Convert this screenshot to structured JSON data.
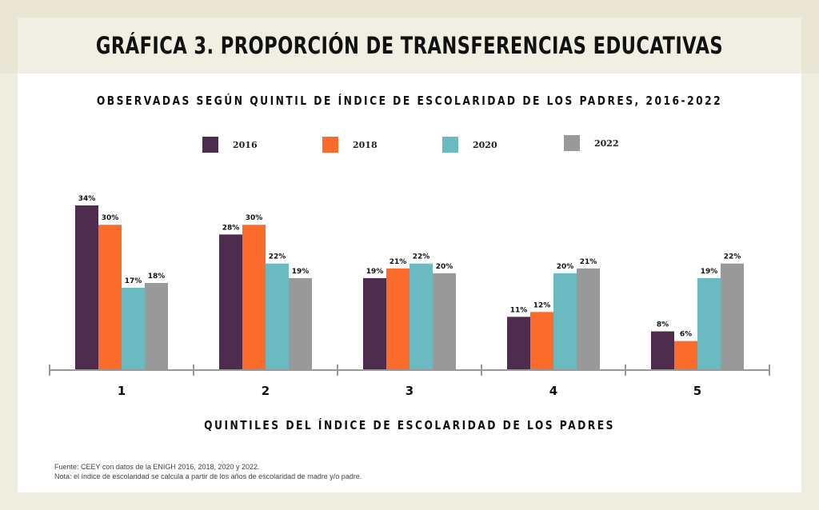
{
  "chart_data": {
    "type": "bar",
    "title": "GRÁFICA 3. PROPORCIÓN DE TRANSFERENCIAS EDUCATIVAS",
    "subtitle": "OBSERVADAS SEGÚN QUINTIL DE ÍNDICE DE ESCOLARIDAD DE LOS PADRES, 2016-2022",
    "xlabel": "QUINTILES DEL ÍNDICE DE ESCOLARIDAD DE LOS PADRES",
    "ylabel": "",
    "ylim": [
      0,
      34
    ],
    "categories": [
      "1",
      "2",
      "3",
      "4",
      "5"
    ],
    "series": [
      {
        "name": "2016",
        "color": "#4e2c4d",
        "values": [
          34,
          28,
          19,
          11,
          8
        ],
        "labels": [
          "34%",
          "28%",
          "19%",
          "11%",
          "8%"
        ]
      },
      {
        "name": "2018",
        "color": "#fa6b2c",
        "values": [
          30,
          30,
          21,
          12,
          6
        ],
        "labels": [
          "30%",
          "30%",
          "21%",
          "12%",
          "6%"
        ]
      },
      {
        "name": "2020",
        "color": "#6bbac1",
        "values": [
          17,
          22,
          22,
          20,
          19
        ],
        "labels": [
          "17%",
          "22%",
          "22%",
          "20%",
          "19%"
        ]
      },
      {
        "name": "2022",
        "color": "#999999",
        "values": [
          18,
          19,
          20,
          21,
          22
        ],
        "labels": [
          "18%",
          "19%",
          "20%",
          "21%",
          "22%"
        ]
      }
    ],
    "legend_position": "top",
    "grid": false
  },
  "footnote": {
    "line1": "Fuente: CEEY con datos de la ENIGH 2016, 2018, 2020 y 2022.",
    "line2": "Nota: el índice de escolaridad se calcula a partir de los años de escolaridad de madre y/o padre."
  }
}
